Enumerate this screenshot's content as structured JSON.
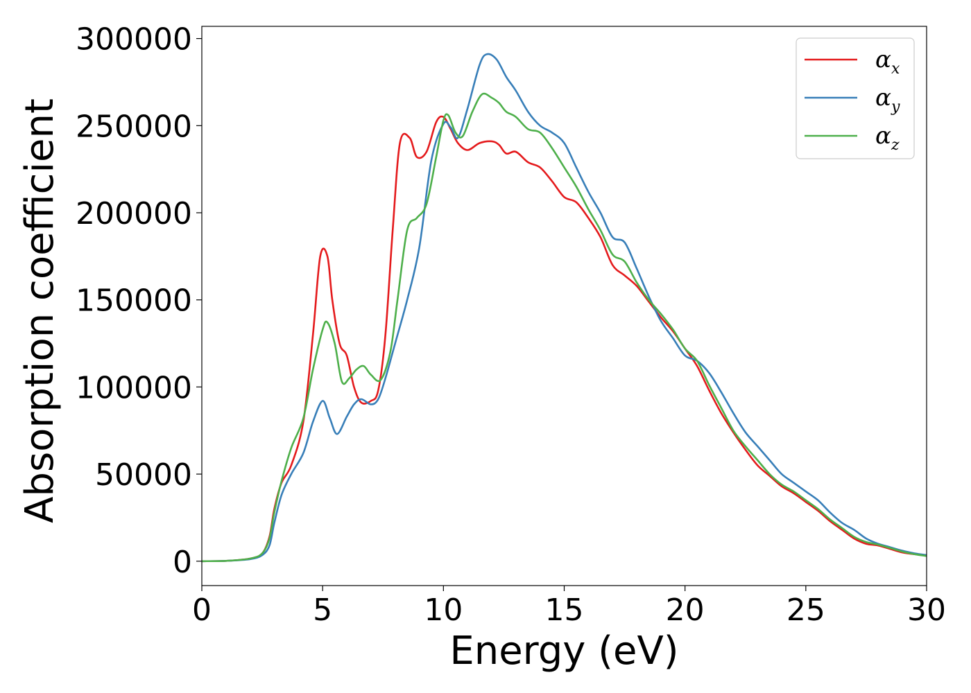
{
  "chart_data": {
    "type": "line",
    "title": "",
    "xlabel": "Energy (eV)",
    "ylabel": "Absorption coefficient",
    "xlim": [
      0,
      30
    ],
    "ylim": [
      -14000,
      307000
    ],
    "xticks": [
      0,
      5,
      10,
      15,
      20,
      25,
      30
    ],
    "xtick_labels": [
      "0",
      "5",
      "10",
      "15",
      "20",
      "25",
      "30"
    ],
    "yticks": [
      0,
      50000,
      100000,
      150000,
      200000,
      250000,
      300000
    ],
    "ytick_labels": [
      "0",
      "50000",
      "100000",
      "150000",
      "200000",
      "250000",
      "300000"
    ],
    "grid": false,
    "legend_position": "top-right",
    "series": [
      {
        "name": "α_x",
        "color": "#e41a1c",
        "x": [
          0,
          1,
          2,
          2.5,
          2.8,
          3.0,
          3.3,
          3.7,
          4.2,
          4.6,
          4.9,
          5.2,
          5.4,
          5.7,
          6.0,
          6.3,
          6.6,
          7.0,
          7.3,
          7.6,
          7.9,
          8.2,
          8.6,
          8.9,
          9.3,
          9.7,
          10.0,
          10.3,
          10.6,
          11.0,
          11.5,
          12.0,
          12.3,
          12.6,
          13.0,
          13.5,
          14.0,
          14.5,
          15.0,
          15.5,
          16.0,
          16.5,
          17.0,
          17.5,
          18.0,
          18.5,
          19.0,
          19.5,
          20.0,
          20.5,
          21.0,
          21.5,
          22.0,
          22.5,
          23.0,
          23.5,
          24.0,
          24.5,
          25.0,
          25.5,
          26.0,
          26.5,
          27.0,
          27.5,
          28.0,
          28.5,
          29.0,
          29.5,
          30.0
        ],
        "y": [
          0,
          200,
          1500,
          4500,
          14000,
          30000,
          45000,
          55000,
          80000,
          130000,
          175000,
          175000,
          150000,
          125000,
          118000,
          100000,
          91000,
          92000,
          98000,
          130000,
          190000,
          240000,
          243000,
          232000,
          235000,
          252000,
          255000,
          248000,
          240000,
          236000,
          240000,
          241000,
          239000,
          234000,
          235000,
          229000,
          226000,
          218000,
          209000,
          206000,
          197000,
          186000,
          170000,
          164000,
          158000,
          149000,
          140000,
          132000,
          122000,
          112000,
          98000,
          85000,
          74000,
          64000,
          55000,
          49000,
          43000,
          39000,
          34000,
          29000,
          23000,
          18000,
          13000,
          10000,
          9000,
          7000,
          5000,
          4000,
          3500
        ]
      },
      {
        "name": "α_y",
        "color": "#377eb8",
        "x": [
          0,
          1,
          2,
          2.5,
          2.8,
          3.0,
          3.3,
          3.7,
          4.2,
          4.6,
          5.0,
          5.3,
          5.6,
          6.0,
          6.3,
          6.6,
          7.0,
          7.3,
          7.6,
          8.0,
          8.5,
          9.0,
          9.5,
          10.0,
          10.3,
          10.6,
          11.0,
          11.5,
          11.8,
          12.2,
          12.6,
          13.0,
          13.5,
          14.0,
          14.5,
          15.0,
          15.5,
          16.0,
          16.5,
          17.0,
          17.5,
          18.0,
          18.5,
          19.0,
          19.5,
          20.0,
          20.5,
          21.0,
          21.5,
          22.0,
          22.5,
          23.0,
          23.5,
          24.0,
          24.5,
          25.0,
          25.5,
          26.0,
          26.5,
          27.0,
          27.5,
          28.0,
          28.5,
          29.0,
          29.5,
          30.0
        ],
        "y": [
          0,
          200,
          1200,
          3500,
          9000,
          22000,
          38000,
          50000,
          62000,
          80000,
          92000,
          82000,
          73000,
          83000,
          90000,
          93000,
          90000,
          93000,
          105000,
          125000,
          150000,
          180000,
          230000,
          251000,
          249000,
          243000,
          260000,
          285000,
          291000,
          288000,
          278000,
          270000,
          258000,
          250000,
          246000,
          240000,
          226000,
          212000,
          200000,
          186000,
          183000,
          168000,
          152000,
          138000,
          128000,
          118000,
          115000,
          108000,
          97000,
          85000,
          74000,
          66000,
          58000,
          50000,
          45000,
          40000,
          35000,
          28000,
          22000,
          18000,
          13000,
          10000,
          8000,
          6000,
          4500,
          3500
        ]
      },
      {
        "name": "α_z",
        "color": "#4daf4a",
        "x": [
          0,
          1,
          2,
          2.5,
          2.8,
          3.0,
          3.3,
          3.7,
          4.2,
          4.6,
          5.0,
          5.2,
          5.5,
          5.8,
          6.1,
          6.4,
          6.7,
          7.0,
          7.4,
          7.8,
          8.1,
          8.5,
          8.9,
          9.3,
          9.7,
          10.0,
          10.2,
          10.5,
          10.8,
          11.2,
          11.6,
          12.0,
          12.3,
          12.6,
          13.0,
          13.5,
          14.0,
          14.5,
          15.0,
          15.5,
          16.0,
          16.5,
          17.0,
          17.5,
          18.0,
          18.5,
          19.0,
          19.5,
          20.0,
          20.5,
          21.0,
          21.5,
          22.0,
          22.5,
          23.0,
          23.5,
          24.0,
          24.5,
          25.0,
          25.5,
          26.0,
          26.5,
          27.0,
          27.5,
          28.0,
          28.5,
          29.0,
          29.5,
          30.0
        ],
        "y": [
          0,
          200,
          1500,
          4500,
          13000,
          28000,
          46000,
          65000,
          82000,
          110000,
          133000,
          137000,
          125000,
          103000,
          105000,
          110000,
          112000,
          107000,
          104000,
          120000,
          150000,
          190000,
          197000,
          205000,
          232000,
          253000,
          256000,
          246000,
          244000,
          258000,
          268000,
          266000,
          263000,
          258000,
          255000,
          248000,
          246000,
          237000,
          226000,
          215000,
          202000,
          190000,
          176000,
          172000,
          160000,
          150000,
          142000,
          133000,
          122000,
          115000,
          101000,
          88000,
          75000,
          66000,
          58000,
          50000,
          44000,
          40000,
          35000,
          30000,
          24000,
          19000,
          14000,
          11000,
          9500,
          7500,
          5500,
          4000,
          3000
        ]
      }
    ]
  }
}
